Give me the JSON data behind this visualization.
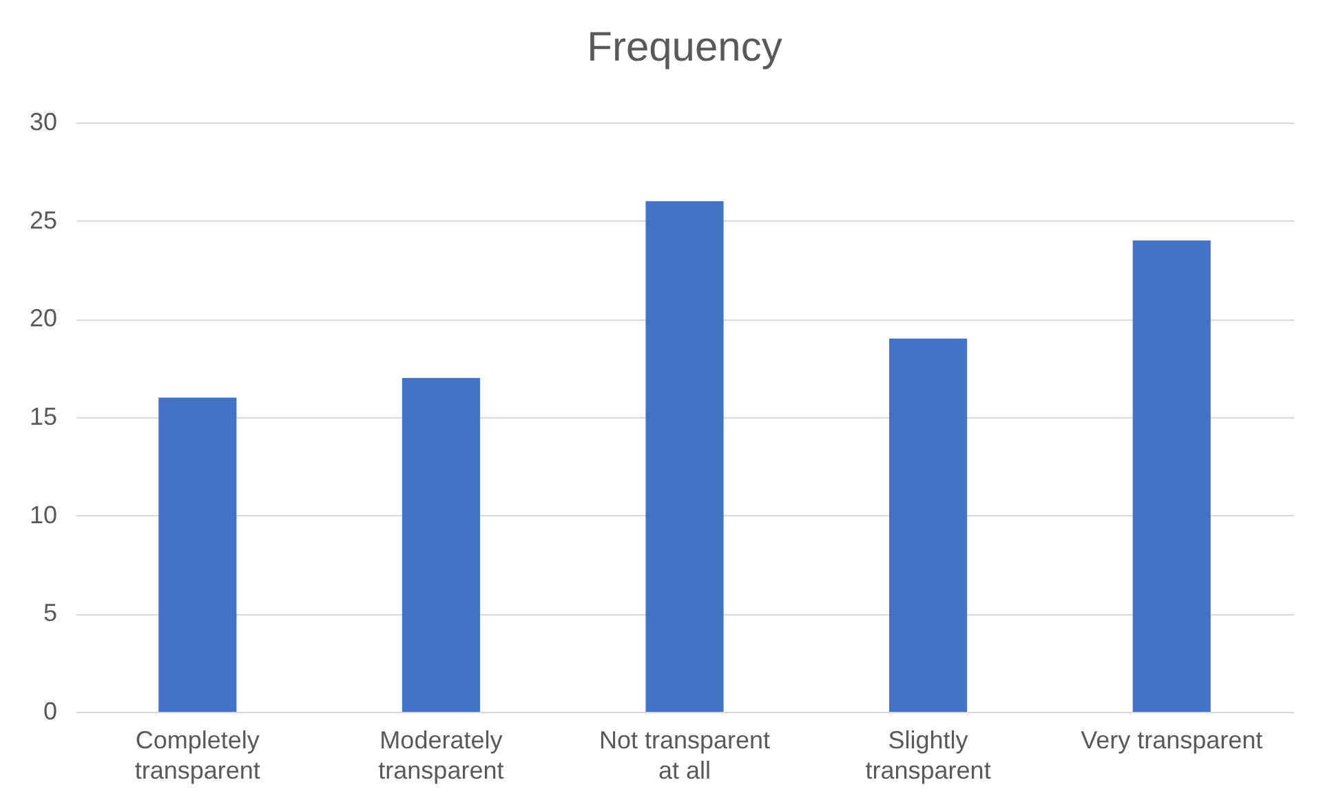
{
  "chart_data": {
    "type": "bar",
    "title": "Frequency",
    "categories": [
      "Completely transparent",
      "Moderately transparent",
      "Not transparent at all",
      "Slightly transparent",
      "Very transparent"
    ],
    "values": [
      16,
      17,
      26,
      19,
      24
    ],
    "color": "#4472c4",
    "ylim": [
      0,
      30
    ],
    "yticks": [
      0,
      5,
      10,
      15,
      20,
      25,
      30
    ],
    "grid": "y"
  }
}
